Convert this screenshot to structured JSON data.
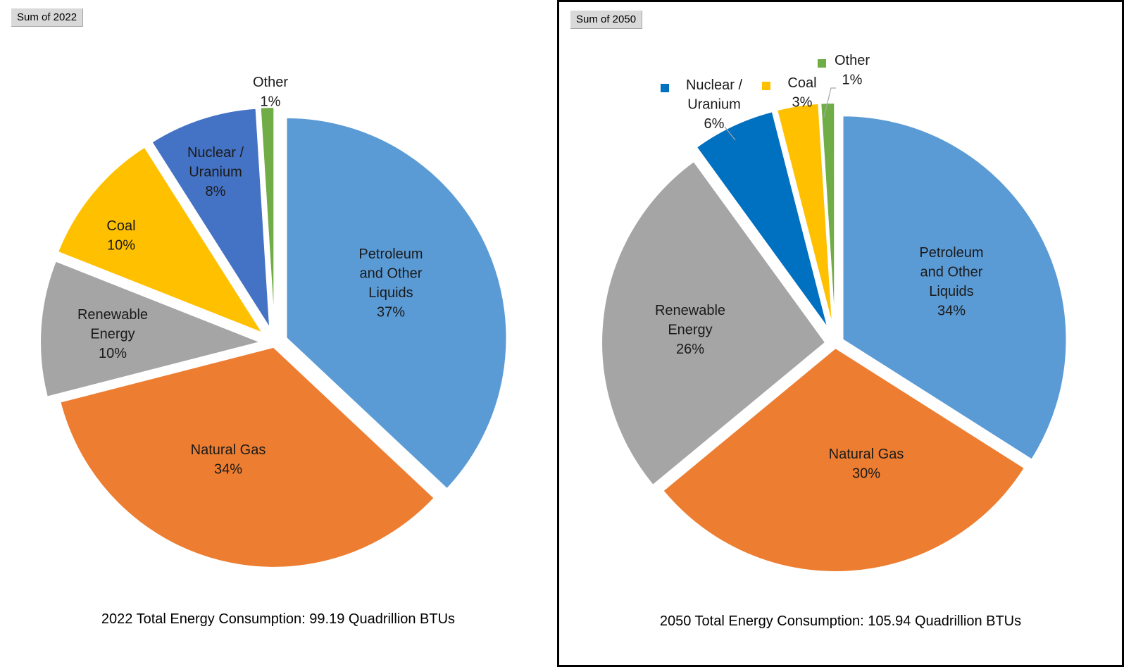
{
  "chart_data": [
    {
      "type": "pie",
      "field_button": "Sum of 2022",
      "footer": "2022 Total Energy Consumption: 99.19 Quadrillion  BTUs",
      "slices": [
        {
          "name": "Petroleum and Other Liquids",
          "label_lines": [
            "Petroleum",
            "and Other",
            "Liquids"
          ],
          "value": 37,
          "pct_label": "37%",
          "color": "#5b9bd5"
        },
        {
          "name": "Natural Gas",
          "label_lines": [
            "Natural Gas"
          ],
          "value": 34,
          "pct_label": "34%",
          "color": "#ed7d31"
        },
        {
          "name": "Renewable Energy",
          "label_lines": [
            "Renewable",
            "Energy"
          ],
          "value": 10,
          "pct_label": "10%",
          "color": "#a5a5a5"
        },
        {
          "name": "Coal",
          "label_lines": [
            "Coal"
          ],
          "value": 10,
          "pct_label": "10%",
          "color": "#ffc000"
        },
        {
          "name": "Nuclear / Uranium",
          "label_lines": [
            "Nuclear /",
            "Uranium"
          ],
          "value": 8,
          "pct_label": "8%",
          "color": "#4472c4"
        },
        {
          "name": "Other",
          "label_lines": [
            "Other"
          ],
          "value": 1,
          "pct_label": "1%",
          "color": "#70ad47"
        }
      ]
    },
    {
      "type": "pie",
      "field_button": "Sum of 2050",
      "footer": "2050 Total Energy Consumption: 105.94 Quadrillion  BTUs",
      "slices": [
        {
          "name": "Petroleum and Other Liquids",
          "label_lines": [
            "Petroleum",
            "and Other",
            "Liquids"
          ],
          "value": 34,
          "pct_label": "34%",
          "color": "#5b9bd5"
        },
        {
          "name": "Natural Gas",
          "label_lines": [
            "Natural Gas"
          ],
          "value": 30,
          "pct_label": "30%",
          "color": "#ed7d31"
        },
        {
          "name": "Renewable Energy",
          "label_lines": [
            "Renewable",
            "Energy"
          ],
          "value": 26,
          "pct_label": "26%",
          "color": "#a5a5a5"
        },
        {
          "name": "Nuclear / Uranium",
          "label_lines": [
            "Nuclear /",
            "Uranium"
          ],
          "value": 6,
          "pct_label": "6%",
          "color": "#0070c0"
        },
        {
          "name": "Coal",
          "label_lines": [
            "Coal"
          ],
          "value": 3,
          "pct_label": "3%",
          "color": "#ffc000"
        },
        {
          "name": "Other",
          "label_lines": [
            "Other"
          ],
          "value": 1,
          "pct_label": "1%",
          "color": "#70ad47"
        }
      ]
    }
  ]
}
